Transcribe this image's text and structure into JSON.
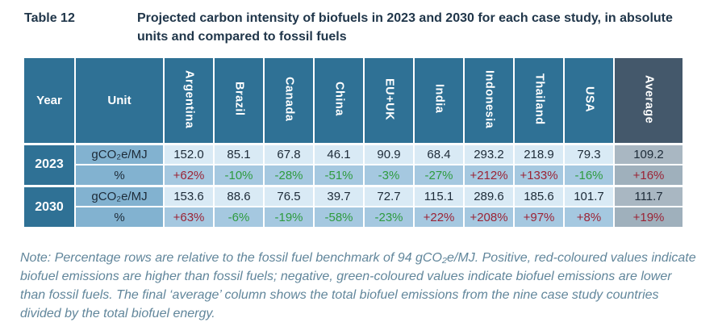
{
  "caption": {
    "label": "Table 12",
    "text": "Projected carbon intensity of biofuels in 2023 and 2030 for each case study, in absolute units and compared to fossil fuels"
  },
  "table": {
    "year_header": "Year",
    "unit_header": "Unit",
    "country_columns": [
      "Argentina",
      "Brazil",
      "Canada",
      "China",
      "EU+UK",
      "India",
      "Indonesia",
      "Thailand",
      "USA"
    ],
    "average_header": "Average",
    "groups": [
      {
        "year": "2023",
        "rows": [
          {
            "unit": "gCO₂e/MJ",
            "values": [
              "152.0",
              "85.1",
              "67.8",
              "46.1",
              "90.9",
              "68.4",
              "293.2",
              "218.9",
              "79.3"
            ],
            "average": "109.2"
          },
          {
            "unit": "%",
            "values": [
              "+62%",
              "-10%",
              "-28%",
              "-51%",
              "-3%",
              "-27%",
              "+212%",
              "+133%",
              "-16%"
            ],
            "average": "+16%"
          }
        ]
      },
      {
        "year": "2030",
        "rows": [
          {
            "unit": "gCO₂e/MJ",
            "values": [
              "153.6",
              "88.6",
              "76.5",
              "39.7",
              "72.7",
              "115.1",
              "289.6",
              "185.6",
              "101.7"
            ],
            "average": "111.7"
          },
          {
            "unit": "%",
            "values": [
              "+63%",
              "-6%",
              "-19%",
              "-58%",
              "-23%",
              "+22%",
              "+208%",
              "+97%",
              "+8%"
            ],
            "average": "+19%"
          }
        ]
      }
    ]
  },
  "note": "Note: Percentage rows are relative to the fossil fuel benchmark of 94 gCO₂e/MJ. Positive, red-coloured values indicate biofuel emissions are higher than fossil fuels; negative, green-coloured values indicate biofuel emissions are lower than fossil fuels. The final ‘average’ column shows the total biofuel emissions from the nine case study countries divided by the total biofuel energy.",
  "colors": {
    "header_blue": "#2F7195",
    "average_header": "#44586B",
    "unit_cell": "#82B2D0",
    "value_cell": "#D9EAF5",
    "percent_cell": "#A5C8E0",
    "average_value_cell": "#A9B7C2",
    "average_percent_cell": "#9FB0BC",
    "positive_red": "#9B2335",
    "negative_green": "#2E9B3F",
    "title_text": "#20364A",
    "note_text": "#61869B",
    "cell_text": "#1D2B38"
  }
}
